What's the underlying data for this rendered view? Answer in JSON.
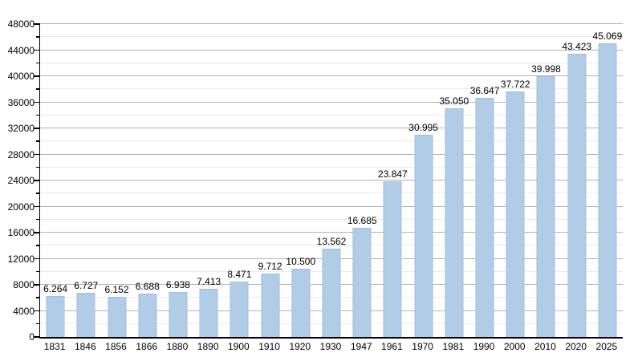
{
  "chart_data": {
    "type": "bar",
    "title": "",
    "xlabel": "",
    "ylabel": "",
    "categories": [
      "1831",
      "1846",
      "1856",
      "1866",
      "1880",
      "1890",
      "1900",
      "1910",
      "1920",
      "1930",
      "1947",
      "1961",
      "1970",
      "1981",
      "1990",
      "2000",
      "2010",
      "2020",
      "2025"
    ],
    "values": [
      6264,
      6727,
      6152,
      6688,
      6938,
      7413,
      8471,
      9712,
      10500,
      13562,
      16685,
      23847,
      30995,
      35050,
      36647,
      37722,
      39998,
      43423,
      45069
    ],
    "value_labels": [
      "6.264",
      "6.727",
      "6.152",
      "6.688",
      "6.938",
      "7.413",
      "8.471",
      "9.712",
      "10.500",
      "13.562",
      "16.685",
      "23.847",
      "30.995",
      "35.050",
      "36.647",
      "37.722",
      "39.998",
      "43.423",
      "45.069"
    ],
    "ylim": [
      0,
      48000
    ],
    "y_major_step": 4000,
    "y_minor_step": 2000,
    "y_tick_labels": [
      "0",
      "4000",
      "8000",
      "12000",
      "16000",
      "20000",
      "24000",
      "28000",
      "32000",
      "36000",
      "40000",
      "44000",
      "48000"
    ],
    "grid": "on",
    "legend": "none",
    "colors": {
      "bar_fill": "#b0cce6",
      "bar_border": "#a2bedb",
      "grid_major": "#b3b3b3",
      "grid_minor": "#ebebeb",
      "axis": "#000000",
      "text": "#000000",
      "background": "#ffffff"
    }
  }
}
